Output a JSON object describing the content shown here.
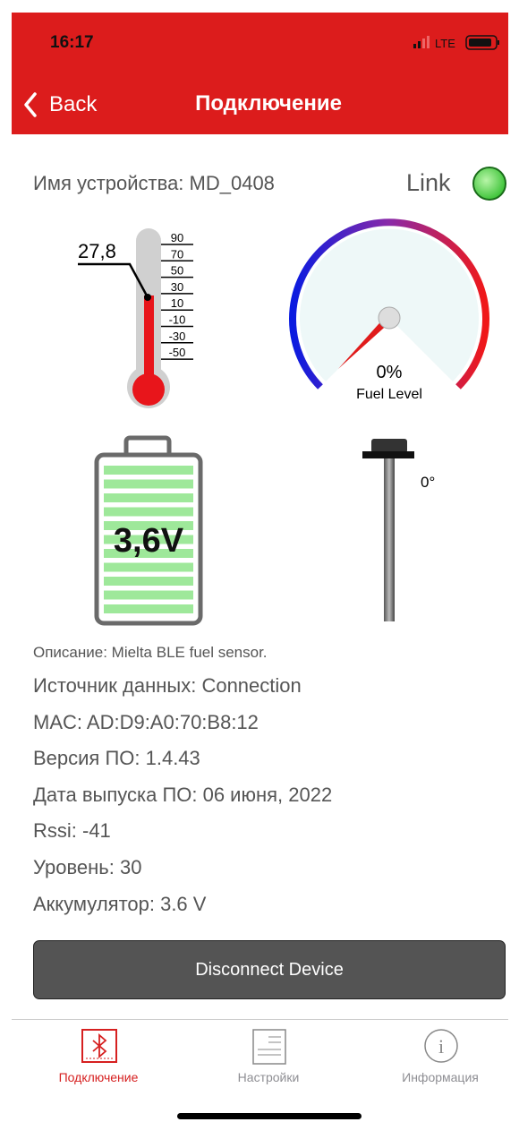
{
  "status_bar": {
    "time": "16:17",
    "network": "LTE"
  },
  "nav": {
    "back": "Back",
    "title": "Подключение"
  },
  "device": {
    "name": "Имя устройства: MD_0408",
    "link": "Link"
  },
  "thermometer": {
    "value": "27,8",
    "scale": [
      "90",
      "70",
      "50",
      "30",
      "10",
      "-10",
      "-30",
      "-50"
    ]
  },
  "gauge": {
    "value": "0%",
    "label": "Fuel Level"
  },
  "battery": {
    "value": "3,6V"
  },
  "probe": {
    "angle": "0°"
  },
  "info": {
    "description": "Описание: Mielta BLE fuel sensor.",
    "lines": [
      "Источник данных: Connection",
      "MAC:  AD:D9:A0:70:B8:12",
      "Версия ПО: 1.4.43",
      "Дата выпуска ПО: 06 июня, 2022",
      "Rssi: -41",
      "Уровень: 30",
      "Аккумулятор: 3.6 V"
    ]
  },
  "button": "Disconnect Device",
  "tabs": [
    "Подключение",
    "Настройки",
    "Информация"
  ]
}
